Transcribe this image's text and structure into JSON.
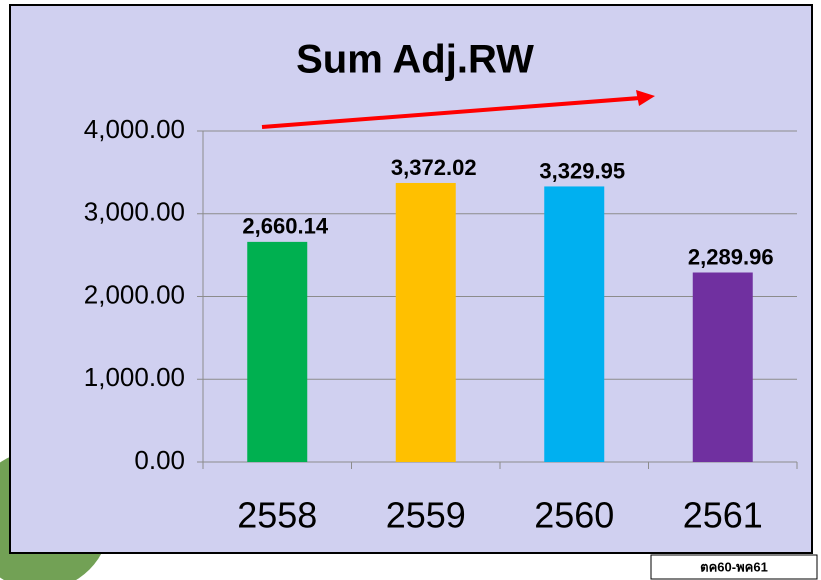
{
  "chart_data": {
    "type": "bar",
    "title": "Sum Adj.RW",
    "categories": [
      "2558",
      "2559",
      "2560",
      "2561"
    ],
    "values": [
      2660.14,
      3372.02,
      3329.95,
      2289.96
    ],
    "value_labels": [
      "2,660.14",
      "3,372.02",
      "3,329.95",
      "2,289.96"
    ],
    "colors": [
      "#00b050",
      "#ffc000",
      "#00b0f0",
      "#7030a0"
    ],
    "ylim": [
      0,
      4000
    ],
    "yticks": [
      {
        "value": 0,
        "label": "0.00"
      },
      {
        "value": 1000,
        "label": "1,000.00"
      },
      {
        "value": 2000,
        "label": "2,000.00"
      },
      {
        "value": 3000,
        "label": "3,000.00"
      },
      {
        "value": 4000,
        "label": "4,000.00"
      }
    ],
    "grid": true,
    "annotation": "ตค60-พค61"
  }
}
